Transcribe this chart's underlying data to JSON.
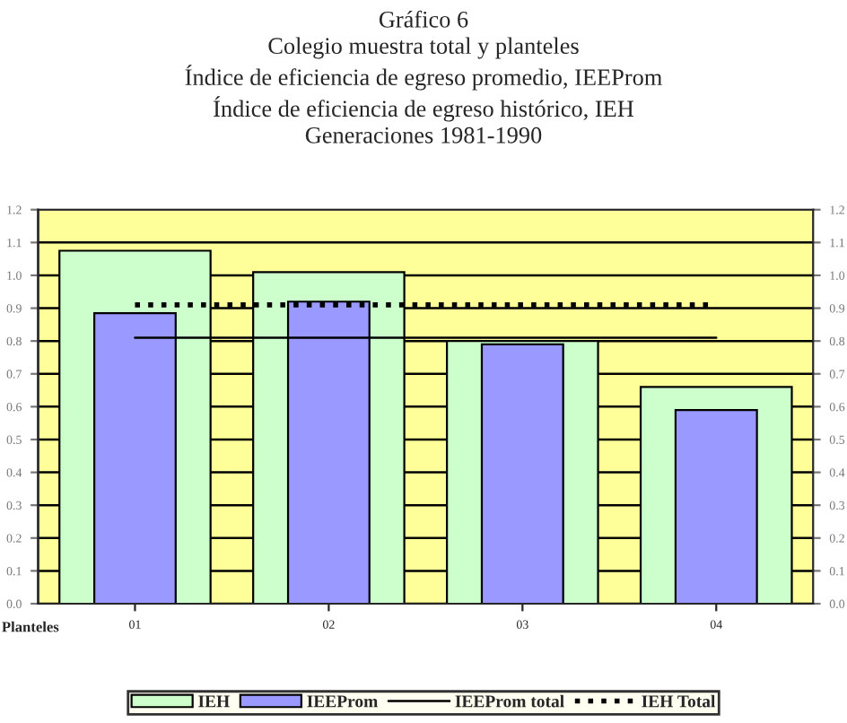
{
  "chart_data": {
    "type": "bar",
    "title": "Gráfico 6\nColegio muestra total y planteles\nÍndice de eficiencia de egreso promedio, IEEProm\nÍndice de eficiencia de egreso histórico, IEH\nGeneraciones 1981-1990",
    "xlabel": "Planteles",
    "categories": [
      "01",
      "02",
      "03",
      "04"
    ],
    "series": [
      {
        "name": "IEH",
        "color": "#ccffcc",
        "values": [
          1.075,
          1.01,
          0.8,
          0.66
        ]
      },
      {
        "name": "IEEProm",
        "color": "#9999ff",
        "values": [
          0.885,
          0.92,
          0.79,
          0.59
        ]
      },
      {
        "name": "IEEProm total",
        "type": "line",
        "color": "#000000",
        "line_style": "solid",
        "values": [
          0.81,
          0.81,
          0.81,
          0.81
        ]
      },
      {
        "name": "IEH Total",
        "type": "line",
        "color": "#000000",
        "line_style": "dotted",
        "values": [
          0.91,
          0.91,
          0.91,
          0.91
        ]
      }
    ],
    "ylim": [
      0,
      1.2
    ],
    "yticks": [
      {
        "value": 0,
        "label": "0.0"
      },
      {
        "value": 0.1,
        "label": "0.1"
      },
      {
        "value": 0.2,
        "label": "0.2"
      },
      {
        "value": 0.3,
        "label": "0.3"
      },
      {
        "value": 0.4,
        "label": "0.4"
      },
      {
        "value": 0.5,
        "label": "0.5"
      },
      {
        "value": 0.6,
        "label": "0.6"
      },
      {
        "value": 0.7,
        "label": "0.7"
      },
      {
        "value": 0.8,
        "label": "0.8"
      },
      {
        "value": 0.9,
        "label": "0.9"
      },
      {
        "value": 1,
        "label": "1.0"
      },
      {
        "value": 1.1,
        "label": "1.1"
      },
      {
        "value": 1.2,
        "label": "1.2"
      }
    ],
    "y2lim": [
      0,
      1.2
    ],
    "y2ticks": [
      {
        "value": 0,
        "label": "0.0"
      },
      {
        "value": 0.1,
        "label": "0.1"
      },
      {
        "value": 0.2,
        "label": "0.2"
      },
      {
        "value": 0.3,
        "label": "0.3"
      },
      {
        "value": 0.4,
        "label": "0.4"
      },
      {
        "value": 0.5,
        "label": "0.5"
      },
      {
        "value": 0.6,
        "label": "0.6"
      },
      {
        "value": 0.7,
        "label": "0.7"
      },
      {
        "value": 0.8,
        "label": "0.8"
      },
      {
        "value": 0.9,
        "label": "0.9"
      },
      {
        "value": 1,
        "label": "1.0"
      },
      {
        "value": 1.1,
        "label": "1.1"
      },
      {
        "value": 1.2,
        "label": "1.2"
      }
    ],
    "grid": "y",
    "legend": "bottom"
  }
}
